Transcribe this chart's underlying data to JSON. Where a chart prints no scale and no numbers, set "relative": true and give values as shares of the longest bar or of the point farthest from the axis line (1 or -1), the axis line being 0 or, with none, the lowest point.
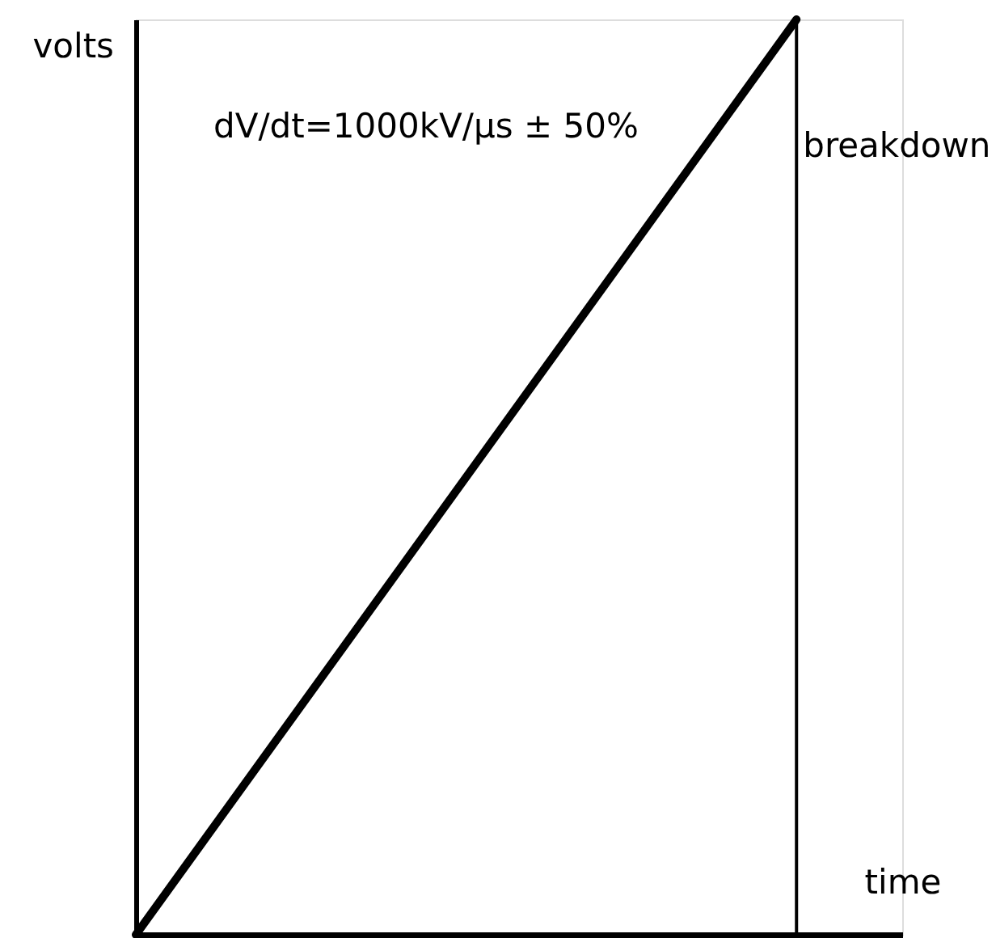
{
  "chart_data": {
    "type": "line",
    "relative": true,
    "categories": [
      null,
      null
    ],
    "values": [
      0,
      1
    ],
    "color": "#000000",
    "xlabel": "time",
    "ylabel": "volts",
    "annotations": [
      "dV/dt=1000kV/μs ± 50%",
      "breakdown"
    ]
  }
}
